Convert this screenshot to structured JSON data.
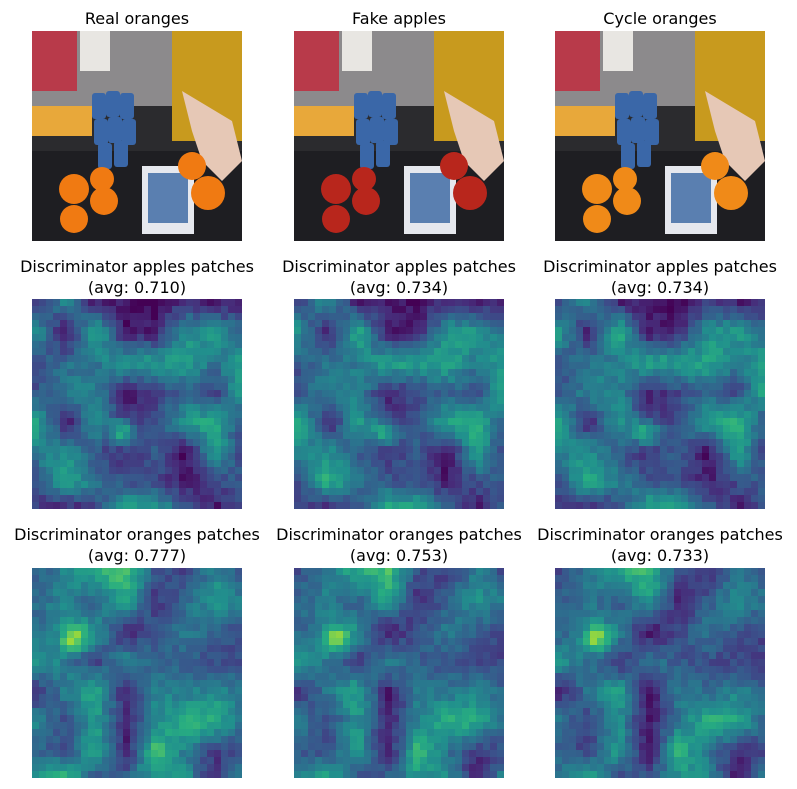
{
  "figure": {
    "rows": [
      {
        "kind": "photo",
        "panels": [
          {
            "title": "Real oranges",
            "fruit": "oranges",
            "fruit_color": "#f07a12"
          },
          {
            "title": "Fake apples",
            "fruit": "apples",
            "fruit_color": "#b8261c"
          },
          {
            "title": "Cycle oranges",
            "fruit": "oranges",
            "fruit_color": "#f08a18"
          }
        ]
      },
      {
        "kind": "heatmap",
        "panels": [
          {
            "title": "Discriminator apples patches",
            "avg_label": "(avg: 0.710)",
            "avg": 0.71
          },
          {
            "title": "Discriminator apples patches",
            "avg_label": "(avg: 0.734)",
            "avg": 0.734
          },
          {
            "title": "Discriminator apples patches",
            "avg_label": "(avg: 0.734)",
            "avg": 0.734
          }
        ]
      },
      {
        "kind": "heatmap",
        "panels": [
          {
            "title": "Discriminator oranges patches",
            "avg_label": "(avg: 0.777)",
            "avg": 0.777
          },
          {
            "title": "Discriminator oranges patches",
            "avg_label": "(avg: 0.753)",
            "avg": 0.753
          },
          {
            "title": "Discriminator oranges patches",
            "avg_label": "(avg: 0.733)",
            "avg": 0.733
          }
        ]
      }
    ],
    "colormap": "viridis"
  }
}
